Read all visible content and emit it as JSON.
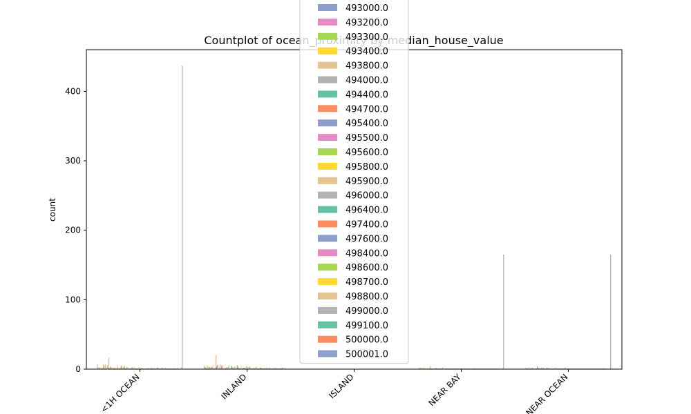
{
  "chart_data": {
    "type": "bar",
    "title": "Countplot of ocean_proximity by median_house_value",
    "xlabel": "",
    "ylabel": "count",
    "categories": [
      "<1H OCEAN",
      "INLAND",
      "ISLAND",
      "NEAR BAY",
      "NEAR OCEAN"
    ],
    "ylim": [
      0,
      460
    ],
    "yticks": [
      0,
      100,
      200,
      300,
      400
    ],
    "x_tick_rotation": 45,
    "legend_position": "top-center",
    "series": [
      {
        "name": "500001.0",
        "color": "#8da0cb",
        "values": [
          437,
          0,
          0,
          165,
          165
        ]
      },
      {
        "name": "500000.0",
        "color": "#fc8d62",
        "values": [
          2,
          0,
          0,
          1,
          1
        ]
      }
    ],
    "minor_bar_palette": [
      "#66c2a5",
      "#fc8d62",
      "#8da0cb",
      "#e78ac3",
      "#a6d854",
      "#ffd92f",
      "#e5c494",
      "#b3b3b3"
    ],
    "minor_bar_max_counts": [
      16,
      20,
      0,
      4,
      5
    ],
    "legend": [
      {
        "label": "493000.0",
        "color": "#8da0cb"
      },
      {
        "label": "493200.0",
        "color": "#e78ac3"
      },
      {
        "label": "493300.0",
        "color": "#a6d854"
      },
      {
        "label": "493400.0",
        "color": "#ffd92f"
      },
      {
        "label": "493800.0",
        "color": "#e5c494"
      },
      {
        "label": "494000.0",
        "color": "#b3b3b3"
      },
      {
        "label": "494400.0",
        "color": "#66c2a5"
      },
      {
        "label": "494700.0",
        "color": "#fc8d62"
      },
      {
        "label": "495400.0",
        "color": "#8da0cb"
      },
      {
        "label": "495500.0",
        "color": "#e78ac3"
      },
      {
        "label": "495600.0",
        "color": "#a6d854"
      },
      {
        "label": "495800.0",
        "color": "#ffd92f"
      },
      {
        "label": "495900.0",
        "color": "#e5c494"
      },
      {
        "label": "496000.0",
        "color": "#b3b3b3"
      },
      {
        "label": "496400.0",
        "color": "#66c2a5"
      },
      {
        "label": "497400.0",
        "color": "#fc8d62"
      },
      {
        "label": "497600.0",
        "color": "#8da0cb"
      },
      {
        "label": "498400.0",
        "color": "#e78ac3"
      },
      {
        "label": "498600.0",
        "color": "#a6d854"
      },
      {
        "label": "498700.0",
        "color": "#ffd92f"
      },
      {
        "label": "498800.0",
        "color": "#e5c494"
      },
      {
        "label": "499000.0",
        "color": "#b3b3b3"
      },
      {
        "label": "499100.0",
        "color": "#66c2a5"
      },
      {
        "label": "500000.0",
        "color": "#fc8d62"
      },
      {
        "label": "500001.0",
        "color": "#8da0cb"
      }
    ]
  }
}
